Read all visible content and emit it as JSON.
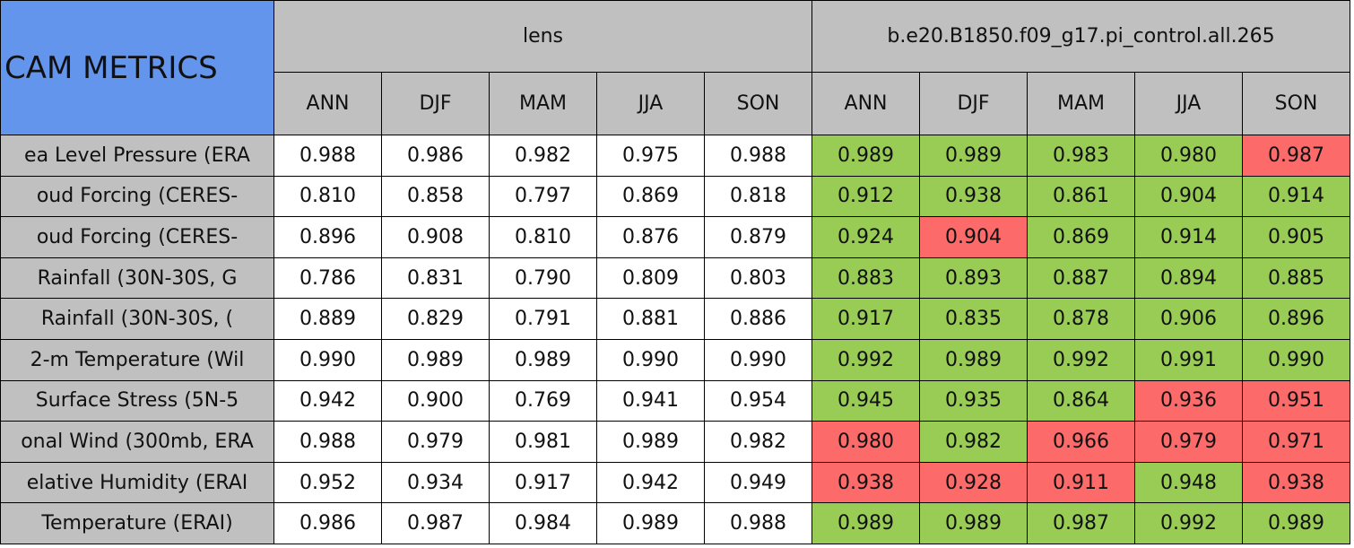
{
  "header": {
    "title": "CAM METRICS",
    "groups": [
      "lens",
      "b.e20.B1850.f09_g17.pi_control.all.265"
    ],
    "seasons": [
      "ANN",
      "DJF",
      "MAM",
      "JJA",
      "SON",
      "ANN",
      "DJF",
      "MAM",
      "JJA",
      "SON"
    ]
  },
  "colors": {
    "title_fill": "#6495ed",
    "header_fill": "#c0c0c0",
    "good": "#99cc55",
    "bad": "#fc6a6a",
    "plain": "#ffffff"
  },
  "table": {
    "rows": [
      {
        "label": "ea Level Pressure (ERA",
        "cells": [
          "0.988",
          "0.986",
          "0.982",
          "0.975",
          "0.988",
          "0.989",
          "0.989",
          "0.983",
          "0.980",
          "0.987"
        ],
        "status": [
          "plain",
          "plain",
          "plain",
          "plain",
          "plain",
          "good",
          "good",
          "good",
          "good",
          "bad"
        ]
      },
      {
        "label": "oud Forcing (CERES-",
        "cells": [
          "0.810",
          "0.858",
          "0.797",
          "0.869",
          "0.818",
          "0.912",
          "0.938",
          "0.861",
          "0.904",
          "0.914"
        ],
        "status": [
          "plain",
          "plain",
          "plain",
          "plain",
          "plain",
          "good",
          "good",
          "good",
          "good",
          "good"
        ]
      },
      {
        "label": "oud Forcing (CERES-",
        "cells": [
          "0.896",
          "0.908",
          "0.810",
          "0.876",
          "0.879",
          "0.924",
          "0.904",
          "0.869",
          "0.914",
          "0.905"
        ],
        "status": [
          "plain",
          "plain",
          "plain",
          "plain",
          "plain",
          "good",
          "bad",
          "good",
          "good",
          "good"
        ]
      },
      {
        "label": "Rainfall (30N-30S, G",
        "cells": [
          "0.786",
          "0.831",
          "0.790",
          "0.809",
          "0.803",
          "0.883",
          "0.893",
          "0.887",
          "0.894",
          "0.885"
        ],
        "status": [
          "plain",
          "plain",
          "plain",
          "plain",
          "plain",
          "good",
          "good",
          "good",
          "good",
          "good"
        ]
      },
      {
        "label": "Rainfall (30N-30S, (",
        "cells": [
          "0.889",
          "0.829",
          "0.791",
          "0.881",
          "0.886",
          "0.917",
          "0.835",
          "0.878",
          "0.906",
          "0.896"
        ],
        "status": [
          "plain",
          "plain",
          "plain",
          "plain",
          "plain",
          "good",
          "good",
          "good",
          "good",
          "good"
        ]
      },
      {
        "label": "2-m Temperature (Wil",
        "cells": [
          "0.990",
          "0.989",
          "0.989",
          "0.990",
          "0.990",
          "0.992",
          "0.989",
          "0.992",
          "0.991",
          "0.990"
        ],
        "status": [
          "plain",
          "plain",
          "plain",
          "plain",
          "plain",
          "good",
          "good",
          "good",
          "good",
          "good"
        ]
      },
      {
        "label": "Surface Stress (5N-5",
        "cells": [
          "0.942",
          "0.900",
          "0.769",
          "0.941",
          "0.954",
          "0.945",
          "0.935",
          "0.864",
          "0.936",
          "0.951"
        ],
        "status": [
          "plain",
          "plain",
          "plain",
          "plain",
          "plain",
          "good",
          "good",
          "good",
          "bad",
          "bad"
        ]
      },
      {
        "label": "onal Wind (300mb, ERA",
        "cells": [
          "0.988",
          "0.979",
          "0.981",
          "0.989",
          "0.982",
          "0.980",
          "0.982",
          "0.966",
          "0.979",
          "0.971"
        ],
        "status": [
          "plain",
          "plain",
          "plain",
          "plain",
          "plain",
          "bad",
          "good",
          "bad",
          "bad",
          "bad"
        ]
      },
      {
        "label": "elative Humidity (ERAI",
        "cells": [
          "0.952",
          "0.934",
          "0.917",
          "0.942",
          "0.949",
          "0.938",
          "0.928",
          "0.911",
          "0.948",
          "0.938"
        ],
        "status": [
          "plain",
          "plain",
          "plain",
          "plain",
          "plain",
          "bad",
          "bad",
          "bad",
          "good",
          "bad"
        ]
      },
      {
        "label": "Temperature (ERAI)",
        "cells": [
          "0.986",
          "0.987",
          "0.984",
          "0.989",
          "0.988",
          "0.989",
          "0.989",
          "0.987",
          "0.992",
          "0.989"
        ],
        "status": [
          "plain",
          "plain",
          "plain",
          "plain",
          "plain",
          "good",
          "good",
          "good",
          "good",
          "good"
        ]
      }
    ]
  }
}
